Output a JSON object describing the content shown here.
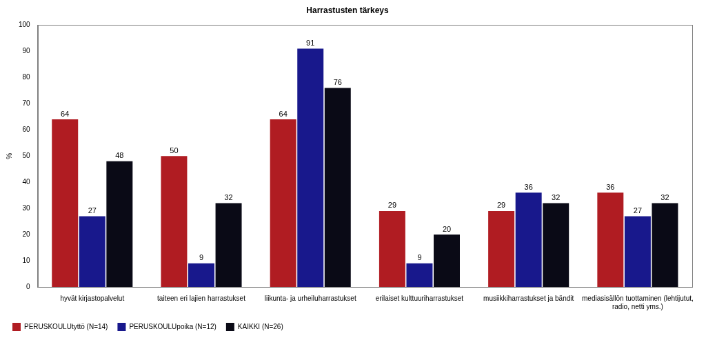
{
  "chart_data": {
    "type": "bar",
    "title": "Harrastusten tärkeys",
    "y_label": "%",
    "categories": [
      "hyvät kirjastopalvelut",
      "taiteen eri lajien harrastukset",
      "liikunta- ja urheiluharrastukset",
      "erilaiset kulttuuriharrastukset",
      "musiikkiharrastukset ja bändit",
      "mediasisällön tuottaminen (lehtijutut, radio, netti yms.)"
    ],
    "series": [
      {
        "name": "PERUSKOULUtyttö (N=14)",
        "color": "#b01c22",
        "values": [
          64,
          50,
          64,
          29,
          29,
          36
        ]
      },
      {
        "name": "PERUSKOULUpoika (N=12)",
        "color": "#18188c",
        "values": [
          27,
          9,
          91,
          9,
          36,
          27
        ]
      },
      {
        "name": "KAIKKI (N=26)",
        "color": "#0a0a16",
        "values": [
          48,
          32,
          76,
          20,
          32,
          32
        ]
      }
    ],
    "ylim": [
      0,
      100
    ],
    "yticks": [
      0,
      10,
      20,
      30,
      40,
      50,
      60,
      70,
      80,
      90,
      100
    ],
    "grid": false,
    "legend": "bottom",
    "data_labels": true
  }
}
